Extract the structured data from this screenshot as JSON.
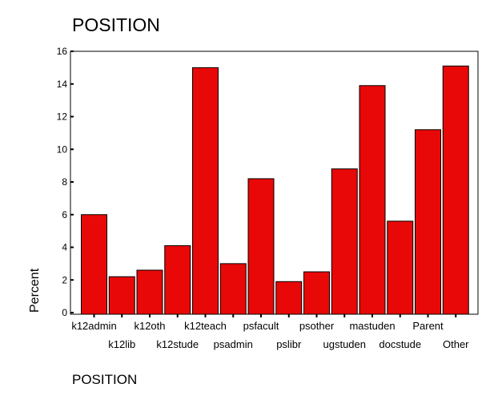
{
  "chart_data": {
    "type": "bar",
    "title": "POSITION",
    "xlabel": "POSITION",
    "ylabel": "Percent",
    "ylim": [
      0,
      16
    ],
    "yticks": [
      0,
      2,
      4,
      6,
      8,
      10,
      12,
      14,
      16
    ],
    "categories": [
      "k12admin",
      "k12lib",
      "k12oth",
      "k12stude",
      "k12teach",
      "psadmin",
      "psfacult",
      "pslibr",
      "psother",
      "ugstuden",
      "mastuden",
      "docstude",
      "Parent",
      "Other"
    ],
    "values": [
      6.0,
      2.2,
      2.6,
      4.1,
      15.0,
      3.0,
      8.2,
      1.9,
      2.5,
      8.8,
      13.9,
      5.6,
      11.2,
      15.1
    ],
    "bar_color": "#E80808",
    "grid": false,
    "legend": "none"
  }
}
